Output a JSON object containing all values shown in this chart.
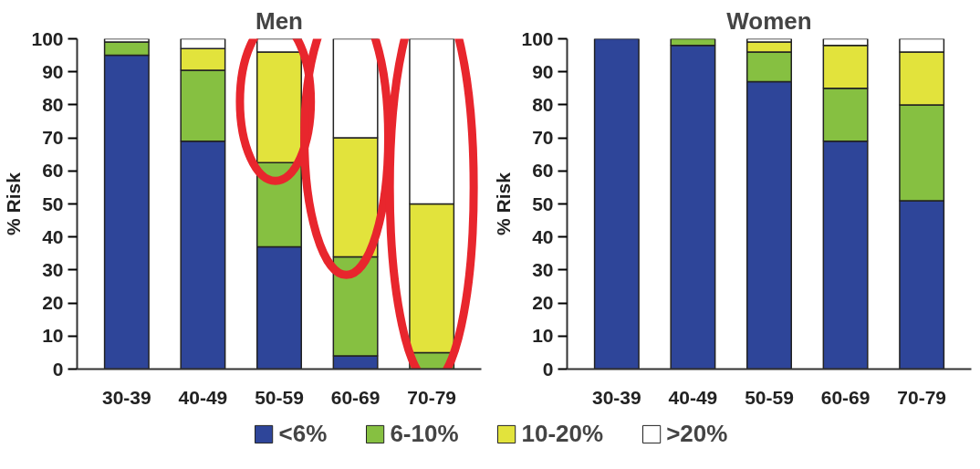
{
  "chart_data": [
    {
      "type": "bar",
      "stacked": true,
      "title": "Men",
      "ylabel": "% Risk",
      "categories": [
        "30-39",
        "40-49",
        "50-59",
        "60-69",
        "70-79"
      ],
      "ylim": [
        0,
        100
      ],
      "yticks": [
        0,
        10,
        20,
        30,
        40,
        50,
        60,
        70,
        80,
        90,
        100
      ],
      "grid": false,
      "legend": "bottom",
      "series": [
        {
          "name": "<6%",
          "color": "#2e4599",
          "values": [
            95,
            69,
            37,
            4,
            null
          ]
        },
        {
          "name": "6-10%",
          "color": "#86c041",
          "values": [
            4,
            21.5,
            25.5,
            30,
            5
          ]
        },
        {
          "name": "10-20%",
          "color": "#e2e33c",
          "values": [
            0,
            6.5,
            33.5,
            36,
            45
          ]
        },
        {
          "name": ">20%",
          "color": "#ffffff",
          "values": [
            1,
            3,
            4,
            30,
            50
          ]
        }
      ]
    },
    {
      "type": "bar",
      "stacked": true,
      "title": "Women",
      "ylabel": "% Risk",
      "categories": [
        "30-39",
        "40-49",
        "50-59",
        "60-69",
        "70-79"
      ],
      "ylim": [
        0,
        100
      ],
      "yticks": [
        0,
        10,
        20,
        30,
        40,
        50,
        60,
        70,
        80,
        90,
        100
      ],
      "grid": false,
      "series": [
        {
          "color": "#2e4599",
          "values": [
            100,
            98,
            87,
            69,
            51
          ]
        },
        {
          "color": "#86c041",
          "values": [
            0,
            2,
            9,
            16,
            29
          ]
        },
        {
          "color": "#e2e33c",
          "values": [
            0,
            0,
            3,
            13,
            16
          ]
        },
        {
          "color": "#ffffff",
          "values": [
            0,
            0,
            1,
            2,
            4
          ]
        }
      ]
    }
  ]
}
